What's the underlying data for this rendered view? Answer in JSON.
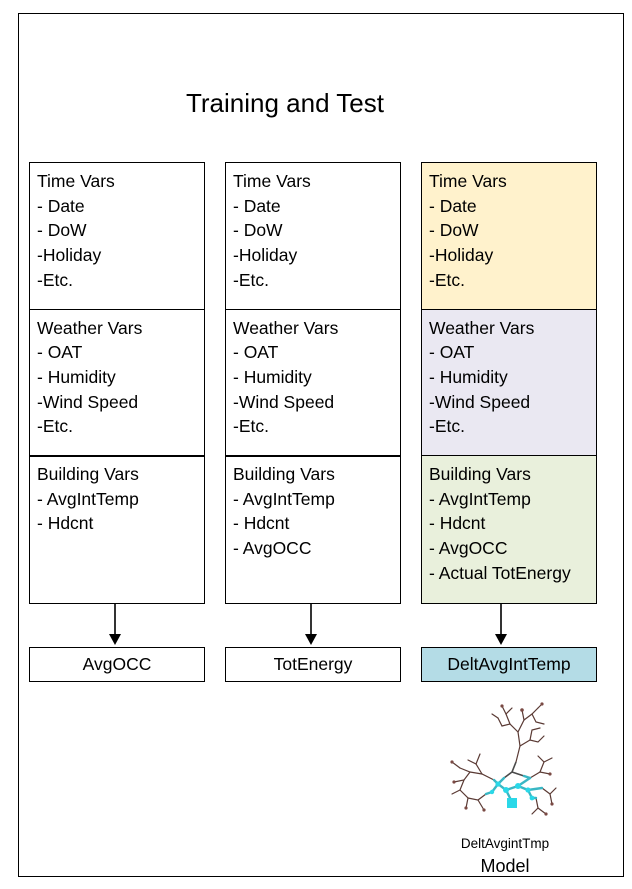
{
  "title": "Training and Test",
  "columns": [
    {
      "sections": [
        {
          "lines": [
            "Time Vars",
            "- Date",
            "- DoW",
            "-Holiday",
            "-Etc."
          ]
        },
        {
          "lines": [
            "Weather Vars",
            "- OAT",
            "- Humidity",
            "-Wind Speed",
            "-Etc."
          ]
        },
        {
          "lines": [
            "Building Vars",
            "- AvgIntTemp",
            "- Hdcnt"
          ]
        }
      ],
      "output": "AvgOCC"
    },
    {
      "sections": [
        {
          "lines": [
            "Time Vars",
            "- Date",
            "- DoW",
            "-Holiday",
            "-Etc."
          ]
        },
        {
          "lines": [
            "Weather Vars",
            "- OAT",
            "- Humidity",
            "-Wind Speed",
            "-Etc."
          ]
        },
        {
          "lines": [
            "Building Vars",
            "- AvgIntTemp",
            "- Hdcnt",
            "- AvgOCC"
          ]
        }
      ],
      "output": "TotEnergy"
    },
    {
      "sections": [
        {
          "lines": [
            "Time Vars",
            "- Date",
            "- DoW",
            "-Holiday",
            "-Etc."
          ]
        },
        {
          "lines": [
            "Weather Vars",
            "- OAT",
            "- Humidity",
            "-Wind Speed",
            "-Etc."
          ]
        },
        {
          "lines": [
            "Building Vars",
            "- AvgIntTemp",
            "- Hdcnt",
            "- AvgOCC",
            "- Actual TotEnergy"
          ]
        }
      ],
      "output": "DeltAvgIntTemp"
    }
  ],
  "colors": {
    "time_highlight": "#fff2cc",
    "weather_highlight": "#eae8f2",
    "building_highlight": "#e9f0dc",
    "output_highlight": "#b4dce6"
  },
  "model": {
    "icon": "tree-model-icon",
    "label_small": "DeltAvgintTmp",
    "label_large": "Model"
  }
}
